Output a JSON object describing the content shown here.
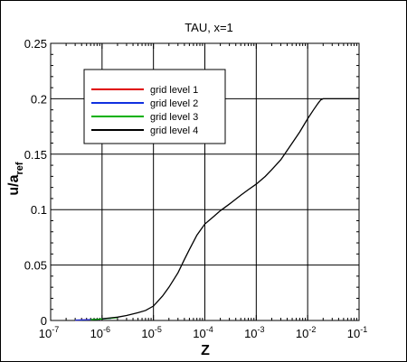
{
  "chart_data": {
    "type": "line",
    "title": "TAU, x=1",
    "xlabel": "Z",
    "ylabel": {
      "main": "u/a",
      "sub": "ref"
    },
    "xscale": "log",
    "xlim": [
      1e-07,
      0.1
    ],
    "ylim": [
      0,
      0.25
    ],
    "x_ticks": [
      {
        "base": "10",
        "exp": "-7",
        "value": 1e-07
      },
      {
        "base": "10",
        "exp": "-6",
        "value": 1e-06
      },
      {
        "base": "10",
        "exp": "-5",
        "value": 1e-05
      },
      {
        "base": "10",
        "exp": "-4",
        "value": 0.0001
      },
      {
        "base": "10",
        "exp": "-3",
        "value": 0.001
      },
      {
        "base": "10",
        "exp": "-2",
        "value": 0.01
      },
      {
        "base": "10",
        "exp": "-1",
        "value": 0.1
      }
    ],
    "y_ticks": [
      "0",
      "0.05",
      "0.1",
      "0.15",
      "0.2",
      "0.25"
    ],
    "y_tick_values": [
      0,
      0.05,
      0.1,
      0.15,
      0.2,
      0.25
    ],
    "grid": true,
    "legend_position": "top-left",
    "series": [
      {
        "name": "grid level 1",
        "color": "#e00000",
        "x": [
          3e-07,
          5e-07,
          8e-07,
          1e-06
        ],
        "y": [
          0.0003,
          0.0006,
          0.001,
          0.0014
        ]
      },
      {
        "name": "grid level 2",
        "color": "#1030e0",
        "x": [
          3e-07,
          5e-07,
          8e-07,
          1e-06,
          1.5e-06
        ],
        "y": [
          0.0003,
          0.0006,
          0.001,
          0.0014,
          0.002
        ]
      },
      {
        "name": "grid level 3",
        "color": "#00b000",
        "x": [
          6e-07,
          8e-07,
          1e-06,
          1.5e-06,
          2e-06
        ],
        "y": [
          0.0008,
          0.001,
          0.0014,
          0.002,
          0.0027
        ]
      },
      {
        "name": "grid level 4",
        "color": "#000000",
        "x": [
          1e-06,
          2e-06,
          3e-06,
          5e-06,
          7e-06,
          1e-05,
          1.5e-05,
          2e-05,
          3e-05,
          4e-05,
          5e-05,
          7e-05,
          0.0001,
          0.00015,
          0.0002,
          0.0003,
          0.0005,
          0.0007,
          0.001,
          0.0015,
          0.002,
          0.003,
          0.005,
          0.007,
          0.01,
          0.013,
          0.016,
          0.018,
          0.02,
          0.05,
          0.1
        ],
        "y": [
          0.0015,
          0.003,
          0.0045,
          0.007,
          0.009,
          0.013,
          0.022,
          0.03,
          0.043,
          0.055,
          0.064,
          0.077,
          0.087,
          0.094,
          0.099,
          0.105,
          0.113,
          0.118,
          0.123,
          0.13,
          0.136,
          0.145,
          0.16,
          0.17,
          0.182,
          0.19,
          0.196,
          0.199,
          0.2,
          0.2,
          0.2
        ]
      }
    ]
  }
}
